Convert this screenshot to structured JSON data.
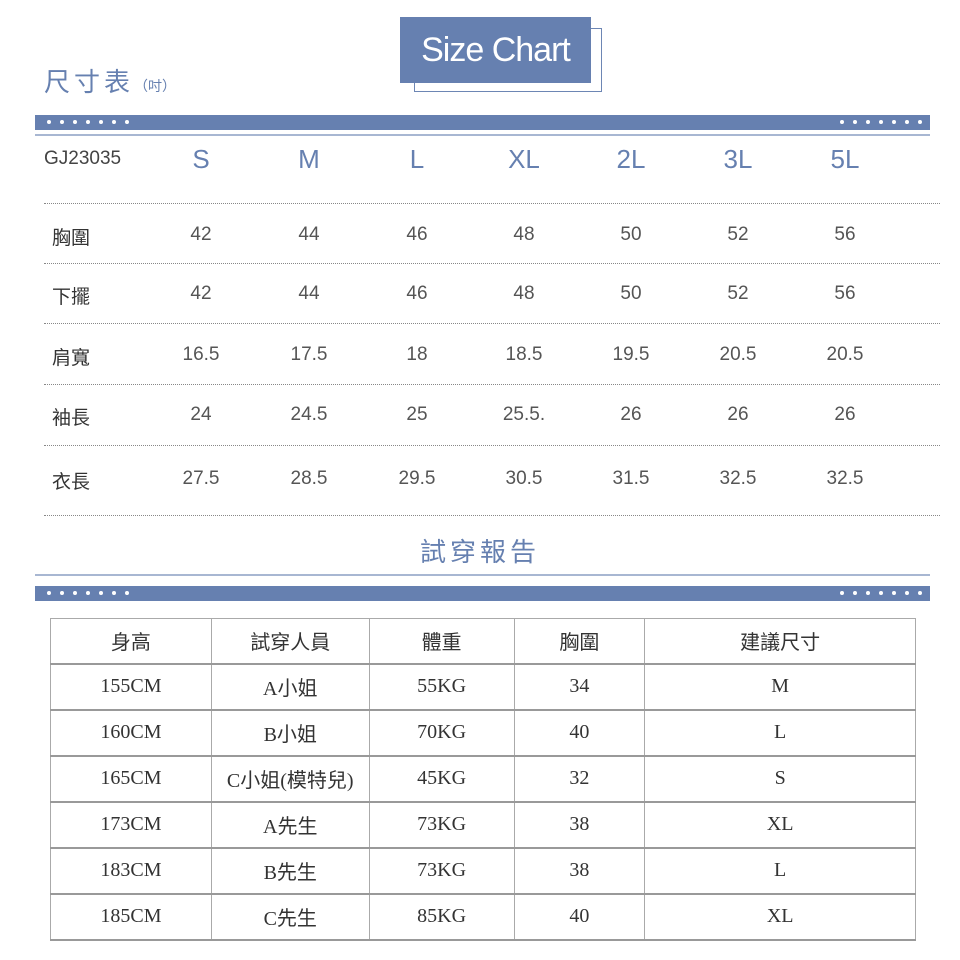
{
  "header": {
    "title": "Size Chart",
    "cn_title": "尺寸表",
    "unit": "（吋）"
  },
  "size_chart": {
    "code": "GJ23035",
    "sizes": [
      "S",
      "M",
      "L",
      "XL",
      "2L",
      "3L",
      "5L"
    ],
    "rows": [
      {
        "label": "胸圍",
        "values": [
          "42",
          "44",
          "46",
          "48",
          "50",
          "52",
          "56"
        ]
      },
      {
        "label": "下擺",
        "values": [
          "42",
          "44",
          "46",
          "48",
          "50",
          "52",
          "56"
        ]
      },
      {
        "label": "肩寬",
        "values": [
          "16.5",
          "17.5",
          "18",
          "18.5",
          "19.5",
          "20.5",
          "20.5"
        ]
      },
      {
        "label": "袖長",
        "values": [
          "24",
          "24.5",
          "25",
          "25.5.",
          "26",
          "26",
          "26"
        ]
      },
      {
        "label": "衣長",
        "values": [
          "27.5",
          "28.5",
          "29.5",
          "30.5",
          "31.5",
          "32.5",
          "32.5"
        ]
      }
    ]
  },
  "report": {
    "title": "試穿報告",
    "headers": [
      "身高",
      "試穿人員",
      "體重",
      "胸圍",
      "建議尺寸"
    ],
    "rows": [
      [
        "155CM",
        "A小姐",
        "55KG",
        "34",
        "M"
      ],
      [
        "160CM",
        "B小姐",
        "70KG",
        "40",
        "L"
      ],
      [
        "165CM",
        "C小姐(模特兒)",
        "45KG",
        "32",
        "S"
      ],
      [
        "173CM",
        "A先生",
        "73KG",
        "38",
        "XL"
      ],
      [
        "183CM",
        "B先生",
        "73KG",
        "38",
        "L"
      ],
      [
        "185CM",
        "C先生",
        "85KG",
        "40",
        "XL"
      ]
    ]
  },
  "colors": {
    "accent": "#6680b0"
  }
}
